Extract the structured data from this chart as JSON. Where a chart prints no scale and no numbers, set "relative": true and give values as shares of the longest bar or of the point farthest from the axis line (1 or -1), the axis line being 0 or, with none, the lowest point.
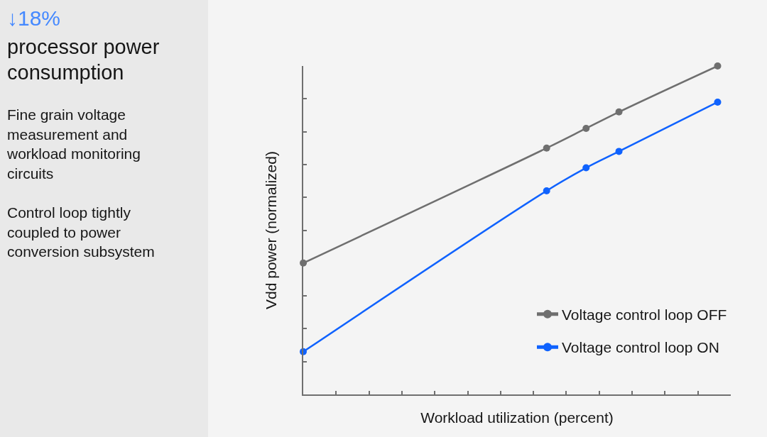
{
  "chart_data": {
    "type": "line",
    "title": "↓18%",
    "subtitle": "processor power consumption",
    "annotations": [
      "Fine grain voltage measurement and workload monitoring circuits",
      "Control loop tightly coupled to power conversion subsystem"
    ],
    "xlabel": "Workload utilization (percent)",
    "ylabel": "Vdd power (normalized)",
    "relative": true,
    "categories": [
      null,
      null,
      null,
      null,
      null,
      null,
      null,
      null,
      null,
      null,
      null,
      null,
      null,
      null,
      null,
      null,
      null,
      null,
      null,
      null,
      null,
      null,
      null,
      null,
      null,
      null,
      null,
      null,
      null,
      null,
      null,
      null,
      null,
      null,
      null,
      null,
      null,
      null,
      null,
      null,
      null,
      null,
      null,
      null,
      null,
      null,
      null,
      null,
      null,
      null,
      null,
      null,
      null,
      null,
      null,
      null,
      null,
      null,
      null,
      null,
      null,
      null,
      null,
      null,
      null,
      null
    ],
    "series": [
      {
        "name": "Voltage control loop OFF",
        "color": "#6f6f6f",
        "values": [
          0.4,
          null,
          null,
          null,
          null,
          null,
          null,
          null,
          null,
          null,
          null,
          null,
          null,
          null,
          null,
          null,
          null,
          null,
          null,
          null,
          null,
          null,
          null,
          null,
          null,
          null,
          null,
          null,
          null,
          null,
          null,
          null,
          null,
          null,
          null,
          null,
          null,
          0.75,
          null,
          null,
          null,
          null,
          null,
          0.81,
          null,
          null,
          null,
          null,
          0.86,
          null,
          null,
          null,
          null,
          null,
          null,
          null,
          null,
          null,
          null,
          null,
          null,
          null,
          null,
          1,
          null,
          null
        ]
      },
      {
        "name": "Voltage control loop ON",
        "color": "#0f62fe",
        "values": [
          0.13,
          null,
          null,
          null,
          null,
          null,
          null,
          null,
          null,
          null,
          null,
          null,
          null,
          null,
          null,
          null,
          null,
          null,
          null,
          null,
          null,
          null,
          null,
          null,
          null,
          null,
          null,
          null,
          null,
          null,
          null,
          null,
          null,
          null,
          null,
          null,
          null,
          0.62,
          null,
          null,
          null,
          null,
          null,
          0.69,
          null,
          null,
          null,
          null,
          0.74,
          null,
          null,
          null,
          null,
          null,
          null,
          null,
          null,
          null,
          null,
          null,
          null,
          null,
          null,
          0.89,
          null,
          null
        ]
      }
    ],
    "legend": "bottom right",
    "marker": "circle",
    "line_style": "solid",
    "tick_labels": false
  }
}
